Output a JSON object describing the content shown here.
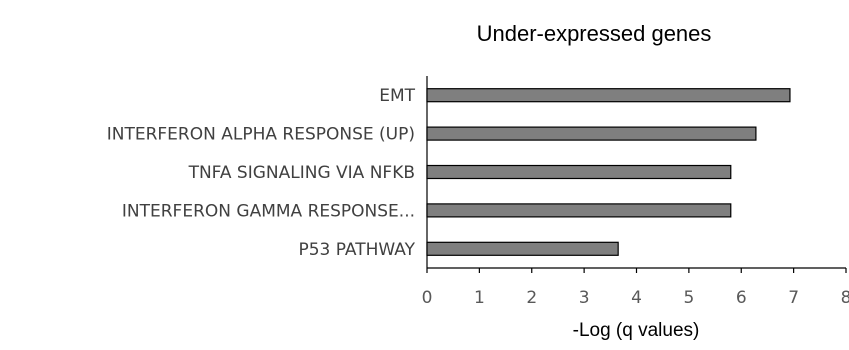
{
  "chart_data": {
    "type": "bar",
    "orientation": "horizontal",
    "title": "Under-expressed genes",
    "xlabel": "-Log (q values)",
    "ylabel": "",
    "categories": [
      "EMT",
      "INTERFERON ALPHA RESPONSE (UP)",
      "TNFA SIGNALING VIA NFKB",
      "INTERFERON GAMMA RESPONSE...",
      "P53 PATHWAY"
    ],
    "values": [
      6.93,
      6.28,
      5.8,
      5.8,
      3.65
    ],
    "xlim": [
      0,
      8
    ],
    "xticks": [
      "0",
      "1",
      "2",
      "3",
      "4",
      "5",
      "6",
      "7",
      "8"
    ],
    "grid": false,
    "legend": "none",
    "colors": {
      "bar": "#7f7f7f",
      "bar_outline": "#000000"
    }
  }
}
